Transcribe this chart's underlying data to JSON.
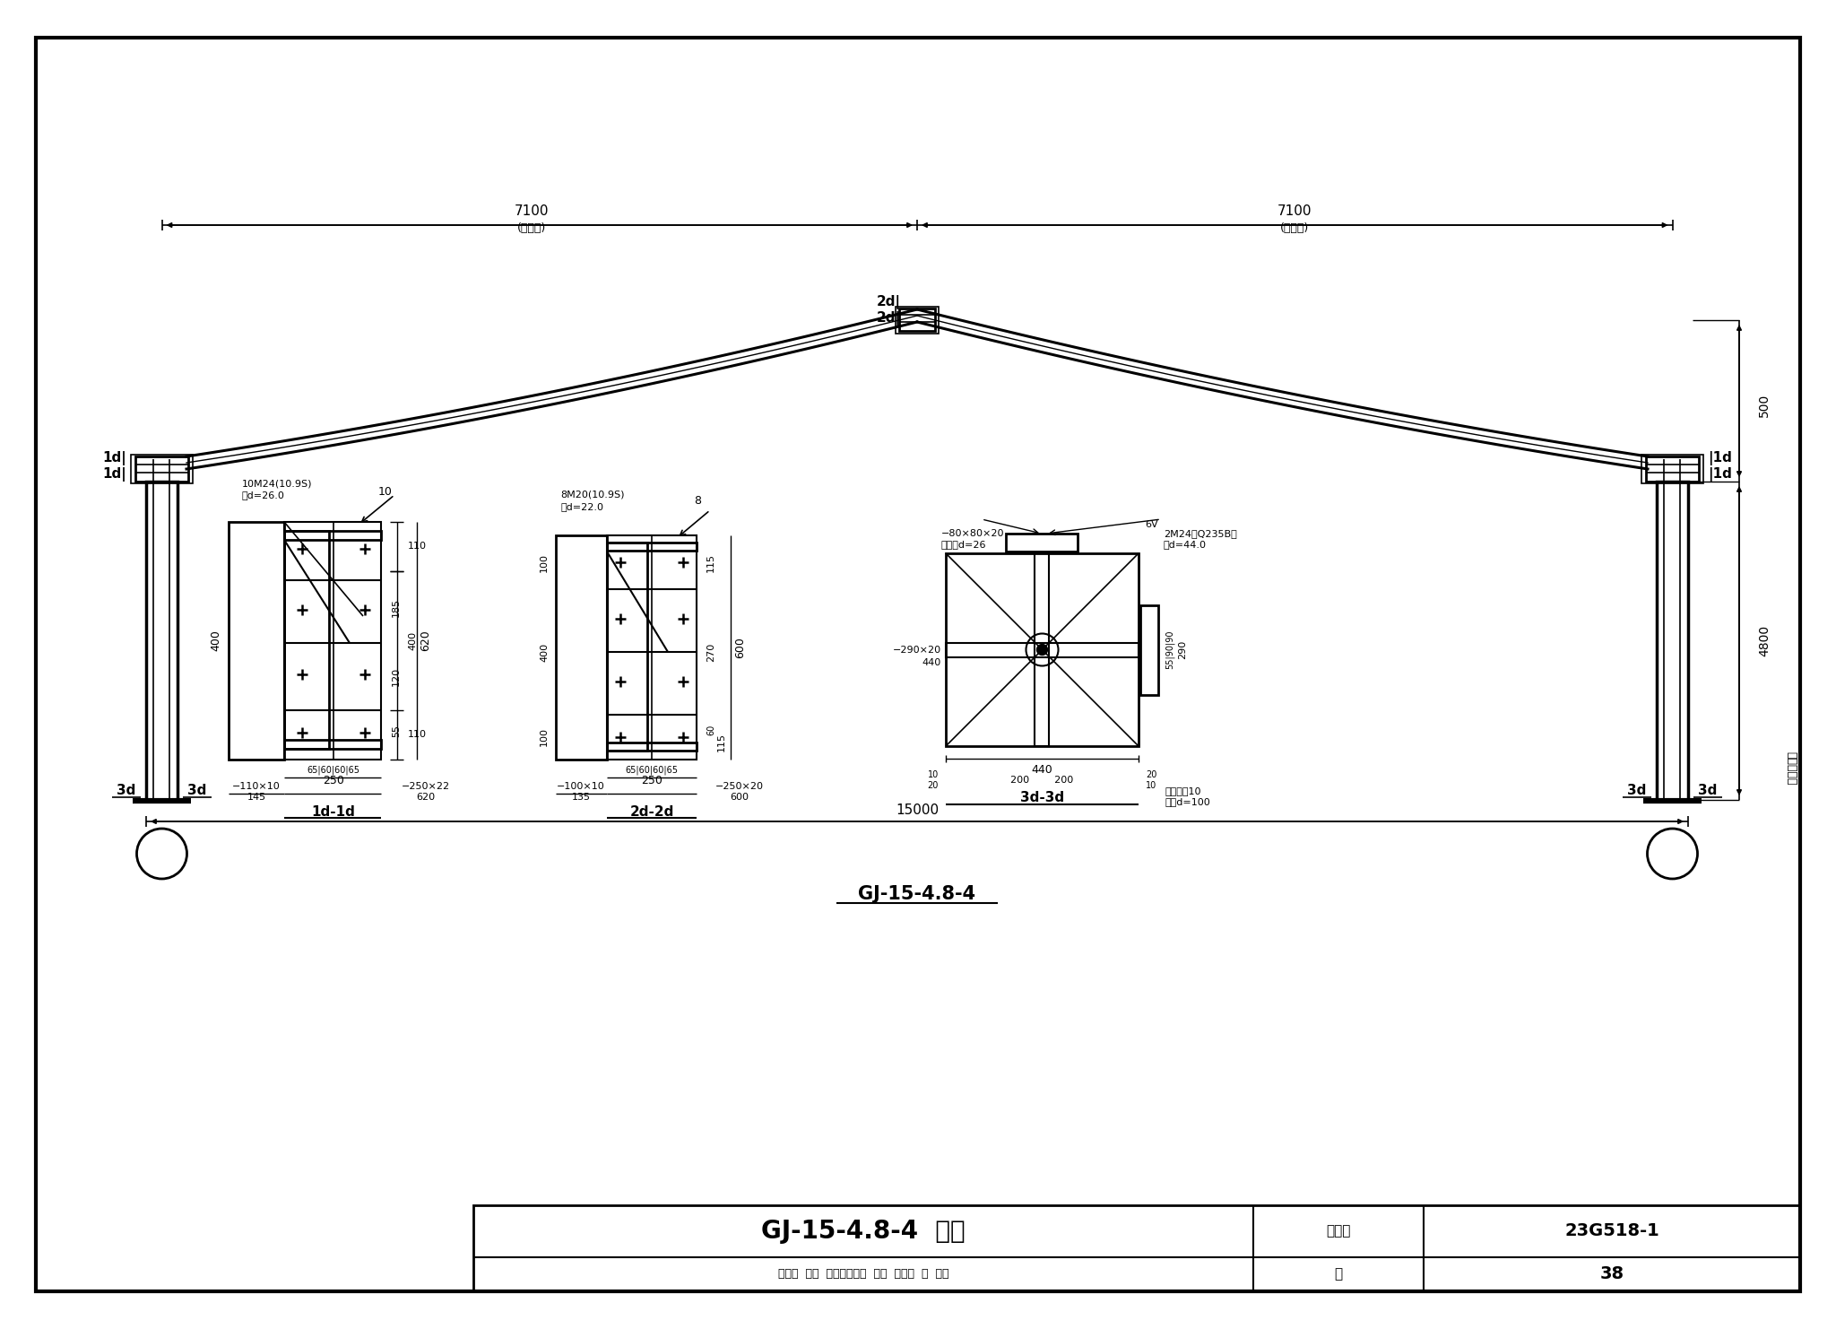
{
  "bg_color": "#ffffff",
  "line_color": "#000000",
  "title_text": "GJ-15-4.8-4 详图",
  "catalog_no": "23G518–1",
  "page_no": "38",
  "span_label": "7100",
  "span_sub": "(第一段)",
  "total_label": "15000",
  "frame_label": "GJ-15-4.8-4",
  "dim_4800": "4800",
  "dim_500": "500",
  "label_jichuding": "基础顶标高"
}
